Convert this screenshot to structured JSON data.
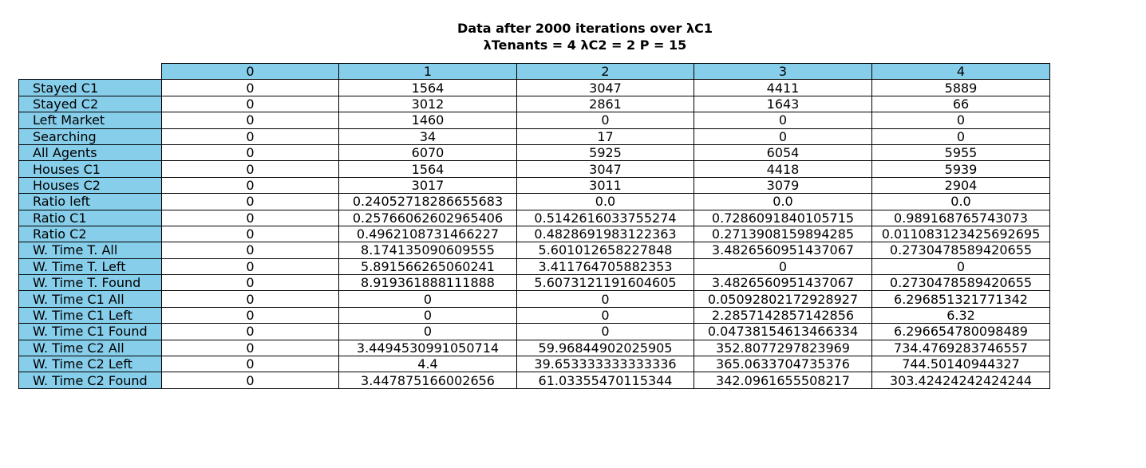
{
  "chart_data": {
    "type": "table",
    "title": "Data after 2000 iterations over λC1",
    "subtitle": "λTenants = 4 λC2 = 2 P = 15",
    "columns": [
      "0",
      "1",
      "2",
      "3",
      "4"
    ],
    "header_color": "#87ceeb",
    "rows": [
      {
        "label": "Stayed C1",
        "values": [
          "0",
          "1564",
          "3047",
          "4411",
          "5889"
        ]
      },
      {
        "label": "Stayed C2",
        "values": [
          "0",
          "3012",
          "2861",
          "1643",
          "66"
        ]
      },
      {
        "label": "Left Market",
        "values": [
          "0",
          "1460",
          "0",
          "0",
          "0"
        ]
      },
      {
        "label": "Searching",
        "values": [
          "0",
          "34",
          "17",
          "0",
          "0"
        ]
      },
      {
        "label": "All Agents",
        "values": [
          "0",
          "6070",
          "5925",
          "6054",
          "5955"
        ]
      },
      {
        "label": "Houses C1",
        "values": [
          "0",
          "1564",
          "3047",
          "4418",
          "5939"
        ]
      },
      {
        "label": "Houses C2",
        "values": [
          "0",
          "3017",
          "3011",
          "3079",
          "2904"
        ]
      },
      {
        "label": "Ratio left",
        "values": [
          "0",
          "0.24052718286655683",
          "0.0",
          "0.0",
          "0.0"
        ]
      },
      {
        "label": "Ratio C1",
        "values": [
          "0",
          "0.25766062602965406",
          "0.5142616033755274",
          "0.7286091840105715",
          "0.989168765743073"
        ]
      },
      {
        "label": "Ratio C2",
        "values": [
          "0",
          "0.4962108731466227",
          "0.4828691983122363",
          "0.2713908159894285",
          "0.011083123425692695"
        ]
      },
      {
        "label": "W. Time T. All",
        "values": [
          "0",
          "8.174135090609555",
          "5.601012658227848",
          "3.4826560951437067",
          "0.2730478589420655"
        ]
      },
      {
        "label": "W. Time T. Left",
        "values": [
          "0",
          "5.891566265060241",
          "3.411764705882353",
          "0",
          "0"
        ]
      },
      {
        "label": "W. Time T. Found",
        "values": [
          "0",
          "8.919361888111888",
          "5.6073121191604605",
          "3.4826560951437067",
          "0.2730478589420655"
        ]
      },
      {
        "label": "W. Time C1 All",
        "values": [
          "0",
          "0",
          "0",
          "0.05092802172928927",
          "6.296851321771342"
        ]
      },
      {
        "label": "W. Time C1 Left",
        "values": [
          "0",
          "0",
          "0",
          "2.2857142857142856",
          "6.32"
        ]
      },
      {
        "label": "W. Time C1 Found",
        "values": [
          "0",
          "0",
          "0",
          "0.04738154613466334",
          "6.296654780098489"
        ]
      },
      {
        "label": "W. Time C2 All",
        "values": [
          "0",
          "3.4494530991050714",
          "59.96844902025905",
          "352.8077297823969",
          "734.4769283746557"
        ]
      },
      {
        "label": "W. Time C2 Left",
        "values": [
          "0",
          "4.4",
          "39.653333333333336",
          "365.0633704735376",
          "744.50140944327"
        ]
      },
      {
        "label": "W. Time C2 Found",
        "values": [
          "0",
          "3.447875166002656",
          "61.03355470115344",
          "342.0961655508217",
          "303.42424242424244"
        ]
      }
    ]
  }
}
